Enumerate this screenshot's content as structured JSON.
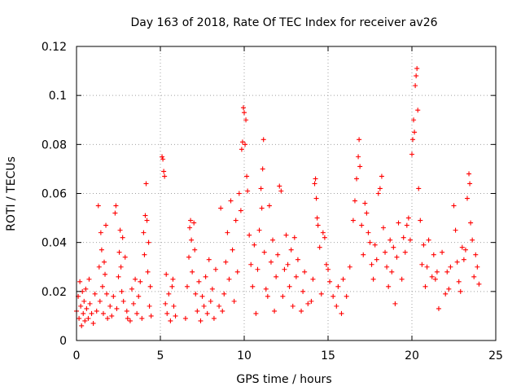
{
  "chart_data": {
    "type": "scatter",
    "title": "Day 163 of 2018, Rate Of TEC Index for receiver av26",
    "xlabel": "GPS time / hours",
    "ylabel": "ROTI / TECUs",
    "xlim": [
      0,
      25
    ],
    "ylim": [
      0,
      0.12
    ],
    "grid": true,
    "marker": "+",
    "color": "#ff0000",
    "x_ticks": [
      "0",
      "5",
      "10",
      "15",
      "20",
      "25"
    ],
    "y_ticks": [
      "0",
      "0.02",
      "0.04",
      "0.06",
      "0.08",
      "0.1",
      "0.12"
    ],
    "x_tick_values": [
      0,
      5,
      10,
      15,
      20,
      25
    ],
    "y_tick_values": [
      0,
      0.02,
      0.04,
      0.06,
      0.08,
      0.1,
      0.12
    ],
    "series": [
      {
        "name": "ROTI",
        "points": [
          [
            0.0,
            0.012
          ],
          [
            0.1,
            0.018
          ],
          [
            0.15,
            0.009
          ],
          [
            0.2,
            0.024
          ],
          [
            0.25,
            0.014
          ],
          [
            0.3,
            0.006
          ],
          [
            0.35,
            0.02
          ],
          [
            0.4,
            0.011
          ],
          [
            0.45,
            0.016
          ],
          [
            0.5,
            0.008
          ],
          [
            0.55,
            0.021
          ],
          [
            0.6,
            0.013
          ],
          [
            0.7,
            0.009
          ],
          [
            0.75,
            0.025
          ],
          [
            0.8,
            0.015
          ],
          [
            0.9,
            0.011
          ],
          [
            1.0,
            0.007
          ],
          [
            1.1,
            0.019
          ],
          [
            1.2,
            0.012
          ],
          [
            1.3,
            0.055
          ],
          [
            1.35,
            0.03
          ],
          [
            1.4,
            0.016
          ],
          [
            1.45,
            0.044
          ],
          [
            1.5,
            0.037
          ],
          [
            1.55,
            0.022
          ],
          [
            1.6,
            0.011
          ],
          [
            1.65,
            0.032
          ],
          [
            1.7,
            0.027
          ],
          [
            1.75,
            0.047
          ],
          [
            1.8,
            0.019
          ],
          [
            1.85,
            0.009
          ],
          [
            2.0,
            0.014
          ],
          [
            2.1,
            0.01
          ],
          [
            2.2,
            0.018
          ],
          [
            2.3,
            0.052
          ],
          [
            2.35,
            0.055
          ],
          [
            2.4,
            0.013
          ],
          [
            2.5,
            0.026
          ],
          [
            2.55,
            0.036
          ],
          [
            2.6,
            0.045
          ],
          [
            2.65,
            0.03
          ],
          [
            2.7,
            0.02
          ],
          [
            2.75,
            0.042
          ],
          [
            2.8,
            0.016
          ],
          [
            2.9,
            0.034
          ],
          [
            3.0,
            0.012
          ],
          [
            3.05,
            0.009
          ],
          [
            3.2,
            0.008
          ],
          [
            3.3,
            0.021
          ],
          [
            3.4,
            0.015
          ],
          [
            3.5,
            0.025
          ],
          [
            3.6,
            0.011
          ],
          [
            3.7,
            0.018
          ],
          [
            3.8,
            0.024
          ],
          [
            3.9,
            0.009
          ],
          [
            4.0,
            0.044
          ],
          [
            4.05,
            0.035
          ],
          [
            4.1,
            0.051
          ],
          [
            4.15,
            0.064
          ],
          [
            4.2,
            0.049
          ],
          [
            4.25,
            0.028
          ],
          [
            4.3,
            0.04
          ],
          [
            4.35,
            0.014
          ],
          [
            4.4,
            0.022
          ],
          [
            4.45,
            0.01
          ],
          [
            5.1,
            0.075
          ],
          [
            5.15,
            0.074
          ],
          [
            5.2,
            0.069
          ],
          [
            5.25,
            0.067
          ],
          [
            5.3,
            0.015
          ],
          [
            5.35,
            0.027
          ],
          [
            5.4,
            0.011
          ],
          [
            5.5,
            0.019
          ],
          [
            5.6,
            0.008
          ],
          [
            5.7,
            0.022
          ],
          [
            5.75,
            0.025
          ],
          [
            5.8,
            0.014
          ],
          [
            5.9,
            0.01
          ],
          [
            6.5,
            0.009
          ],
          [
            6.6,
            0.022
          ],
          [
            6.7,
            0.034
          ],
          [
            6.75,
            0.046
          ],
          [
            6.8,
            0.049
          ],
          [
            6.85,
            0.041
          ],
          [
            6.9,
            0.028
          ],
          [
            7.0,
            0.048
          ],
          [
            7.05,
            0.037
          ],
          [
            7.1,
            0.019
          ],
          [
            7.2,
            0.012
          ],
          [
            7.3,
            0.024
          ],
          [
            7.4,
            0.008
          ],
          [
            7.5,
            0.018
          ],
          [
            7.6,
            0.014
          ],
          [
            7.7,
            0.026
          ],
          [
            7.8,
            0.011
          ],
          [
            7.9,
            0.033
          ],
          [
            8.0,
            0.016
          ],
          [
            8.1,
            0.021
          ],
          [
            8.2,
            0.009
          ],
          [
            8.3,
            0.029
          ],
          [
            8.5,
            0.014
          ],
          [
            8.6,
            0.054
          ],
          [
            8.7,
            0.012
          ],
          [
            8.8,
            0.019
          ],
          [
            8.9,
            0.032
          ],
          [
            9.0,
            0.044
          ],
          [
            9.1,
            0.025
          ],
          [
            9.2,
            0.057
          ],
          [
            9.3,
            0.037
          ],
          [
            9.4,
            0.016
          ],
          [
            9.5,
            0.049
          ],
          [
            9.6,
            0.028
          ],
          [
            9.7,
            0.06
          ],
          [
            9.8,
            0.053
          ],
          [
            9.85,
            0.078
          ],
          [
            9.9,
            0.081
          ],
          [
            9.95,
            0.095
          ],
          [
            10.0,
            0.093
          ],
          [
            10.05,
            0.08
          ],
          [
            10.1,
            0.09
          ],
          [
            10.15,
            0.067
          ],
          [
            10.2,
            0.061
          ],
          [
            10.3,
            0.043
          ],
          [
            10.4,
            0.031
          ],
          [
            10.5,
            0.022
          ],
          [
            10.6,
            0.039
          ],
          [
            10.7,
            0.011
          ],
          [
            10.8,
            0.029
          ],
          [
            10.9,
            0.045
          ],
          [
            11.0,
            0.062
          ],
          [
            11.05,
            0.054
          ],
          [
            11.1,
            0.07
          ],
          [
            11.15,
            0.082
          ],
          [
            11.2,
            0.036
          ],
          [
            11.3,
            0.021
          ],
          [
            11.4,
            0.018
          ],
          [
            11.5,
            0.055
          ],
          [
            11.6,
            0.032
          ],
          [
            11.7,
            0.041
          ],
          [
            11.8,
            0.012
          ],
          [
            11.9,
            0.026
          ],
          [
            12.0,
            0.035
          ],
          [
            12.1,
            0.063
          ],
          [
            12.2,
            0.061
          ],
          [
            12.3,
            0.018
          ],
          [
            12.4,
            0.029
          ],
          [
            12.5,
            0.043
          ],
          [
            12.6,
            0.031
          ],
          [
            12.7,
            0.022
          ],
          [
            12.8,
            0.037
          ],
          [
            12.9,
            0.014
          ],
          [
            13.0,
            0.042
          ],
          [
            13.1,
            0.026
          ],
          [
            13.2,
            0.033
          ],
          [
            13.4,
            0.012
          ],
          [
            13.5,
            0.02
          ],
          [
            13.6,
            0.028
          ],
          [
            13.8,
            0.015
          ],
          [
            14.0,
            0.016
          ],
          [
            14.1,
            0.025
          ],
          [
            14.2,
            0.064
          ],
          [
            14.25,
            0.066
          ],
          [
            14.3,
            0.058
          ],
          [
            14.35,
            0.05
          ],
          [
            14.4,
            0.047
          ],
          [
            14.5,
            0.038
          ],
          [
            14.6,
            0.019
          ],
          [
            14.7,
            0.044
          ],
          [
            14.8,
            0.042
          ],
          [
            14.9,
            0.031
          ],
          [
            15.0,
            0.029
          ],
          [
            15.1,
            0.024
          ],
          [
            15.3,
            0.018
          ],
          [
            15.5,
            0.014
          ],
          [
            15.6,
            0.022
          ],
          [
            15.8,
            0.011
          ],
          [
            15.9,
            0.025
          ],
          [
            16.1,
            0.018
          ],
          [
            16.3,
            0.03
          ],
          [
            16.5,
            0.049
          ],
          [
            16.6,
            0.057
          ],
          [
            16.7,
            0.066
          ],
          [
            16.8,
            0.075
          ],
          [
            16.85,
            0.082
          ],
          [
            16.9,
            0.071
          ],
          [
            17.0,
            0.047
          ],
          [
            17.1,
            0.035
          ],
          [
            17.2,
            0.056
          ],
          [
            17.3,
            0.052
          ],
          [
            17.4,
            0.044
          ],
          [
            17.5,
            0.04
          ],
          [
            17.6,
            0.031
          ],
          [
            17.7,
            0.025
          ],
          [
            17.8,
            0.039
          ],
          [
            17.9,
            0.033
          ],
          [
            18.0,
            0.06
          ],
          [
            18.1,
            0.062
          ],
          [
            18.2,
            0.067
          ],
          [
            18.3,
            0.046
          ],
          [
            18.4,
            0.036
          ],
          [
            18.5,
            0.03
          ],
          [
            18.6,
            0.022
          ],
          [
            18.7,
            0.041
          ],
          [
            18.8,
            0.028
          ],
          [
            18.9,
            0.038
          ],
          [
            19.0,
            0.015
          ],
          [
            19.1,
            0.034
          ],
          [
            19.2,
            0.048
          ],
          [
            19.4,
            0.025
          ],
          [
            19.5,
            0.042
          ],
          [
            19.6,
            0.036
          ],
          [
            19.7,
            0.047
          ],
          [
            19.8,
            0.05
          ],
          [
            19.9,
            0.041
          ],
          [
            20.0,
            0.076
          ],
          [
            20.05,
            0.082
          ],
          [
            20.1,
            0.09
          ],
          [
            20.15,
            0.085
          ],
          [
            20.2,
            0.104
          ],
          [
            20.25,
            0.108
          ],
          [
            20.3,
            0.111
          ],
          [
            20.35,
            0.094
          ],
          [
            20.4,
            0.062
          ],
          [
            20.5,
            0.049
          ],
          [
            20.6,
            0.031
          ],
          [
            20.7,
            0.039
          ],
          [
            20.8,
            0.022
          ],
          [
            20.9,
            0.03
          ],
          [
            21.0,
            0.041
          ],
          [
            21.2,
            0.026
          ],
          [
            21.3,
            0.035
          ],
          [
            21.4,
            0.025
          ],
          [
            21.5,
            0.028
          ],
          [
            21.6,
            0.013
          ],
          [
            21.8,
            0.036
          ],
          [
            22.0,
            0.019
          ],
          [
            22.1,
            0.028
          ],
          [
            22.2,
            0.021
          ],
          [
            22.3,
            0.03
          ],
          [
            22.5,
            0.055
          ],
          [
            22.6,
            0.045
          ],
          [
            22.7,
            0.032
          ],
          [
            22.8,
            0.024
          ],
          [
            22.9,
            0.02
          ],
          [
            23.0,
            0.038
          ],
          [
            23.1,
            0.033
          ],
          [
            23.2,
            0.037
          ],
          [
            23.3,
            0.058
          ],
          [
            23.4,
            0.068
          ],
          [
            23.45,
            0.064
          ],
          [
            23.5,
            0.048
          ],
          [
            23.6,
            0.041
          ],
          [
            23.7,
            0.026
          ],
          [
            23.8,
            0.035
          ],
          [
            23.9,
            0.03
          ],
          [
            24.0,
            0.023
          ]
        ]
      }
    ]
  }
}
